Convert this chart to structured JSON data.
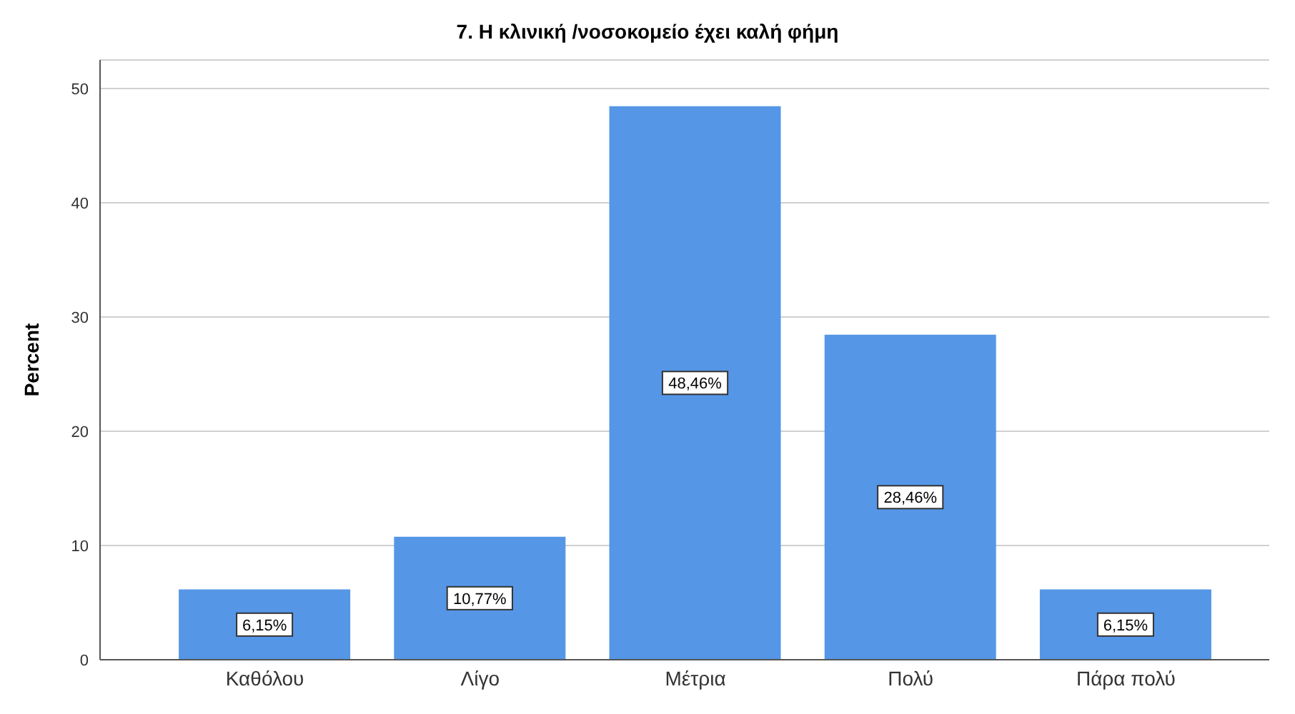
{
  "chart_data": {
    "type": "bar",
    "title": "7. Η κλινική /νοσοκομείο έχει καλή φήμη",
    "ylabel": "Percent",
    "categories": [
      "Καθόλου",
      "Λίγο",
      "Μέτρια",
      "Πολύ",
      "Πάρα πολύ"
    ],
    "values": [
      6.15,
      10.77,
      48.46,
      28.46,
      6.15
    ],
    "value_labels": [
      "6,15%",
      "10,77%",
      "48,46%",
      "28,46%",
      "6,15%"
    ],
    "color": "#5596e6",
    "ylim": [
      0,
      52.5
    ],
    "yticks": [
      0,
      10,
      20,
      30,
      40,
      50
    ],
    "grid": "y"
  }
}
